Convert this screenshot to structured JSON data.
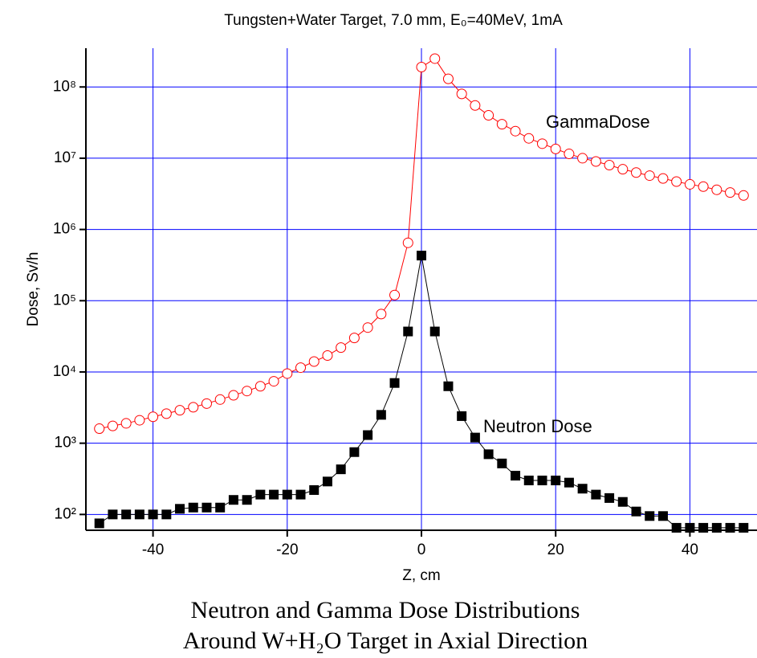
{
  "chart_data": {
    "type": "line",
    "title": "Tungsten+Water Target, 7.0 mm, E₀=40MeV, 1mA",
    "caption": [
      "Neutron and Gamma  Dose Distributions",
      "Around W+H₂O Target in Axial Direction"
    ],
    "x_label": "Z, cm",
    "y_label": "Dose, Sv/h",
    "x": [
      -48,
      -46,
      -44,
      -42,
      -40,
      -38,
      -36,
      -34,
      -32,
      -30,
      -28,
      -26,
      -24,
      -22,
      -20,
      -18,
      -16,
      -14,
      -12,
      -10,
      -8,
      -6,
      -4,
      -2,
      0,
      2,
      4,
      6,
      8,
      10,
      12,
      14,
      16,
      18,
      20,
      22,
      24,
      26,
      28,
      30,
      32,
      34,
      36,
      38,
      40,
      42,
      44,
      46,
      48
    ],
    "series": [
      {
        "name": "GammaDose",
        "color": "#ff0000",
        "marker": "circle",
        "values": [
          1600,
          1750,
          1900,
          2100,
          2350,
          2600,
          2900,
          3200,
          3600,
          4100,
          4700,
          5400,
          6300,
          7400,
          9500,
          11500,
          14000,
          17000,
          22000,
          30000,
          42000,
          65000,
          120000,
          650000,
          190000000,
          250000000,
          130000000,
          80000000,
          55000000,
          40000000,
          30000000,
          24000000,
          19000000,
          16000000,
          13500000,
          11500000,
          10000000,
          9000000,
          8000000,
          7000000,
          6300000,
          5700000,
          5200000,
          4700000,
          4300000,
          4000000,
          3600000,
          3300000,
          3000000
        ]
      },
      {
        "name": "Neutron Dose",
        "color": "#000000",
        "marker": "square",
        "values": [
          75,
          100,
          100,
          100,
          100,
          100,
          120,
          125,
          125,
          125,
          160,
          160,
          190,
          190,
          190,
          190,
          220,
          290,
          430,
          750,
          1300,
          2500,
          7000,
          37000,
          430000,
          37000,
          6300,
          2400,
          1200,
          700,
          520,
          350,
          300,
          300,
          300,
          280,
          230,
          190,
          170,
          150,
          110,
          95,
          95,
          65,
          65,
          65,
          65,
          65,
          65
        ]
      }
    ],
    "log_y": true,
    "grid": true,
    "xlim": [
      -50,
      50
    ],
    "xticks": [
      -40,
      -20,
      0,
      20,
      40
    ],
    "ylim": [
      60,
      350000000
    ],
    "yticks": [
      {
        "value": 100,
        "label": "10²"
      },
      {
        "value": 1000,
        "label": "10³"
      },
      {
        "value": 10000,
        "label": "10⁴"
      },
      {
        "value": 100000,
        "label": "10⁵"
      },
      {
        "value": 1000000,
        "label": "10⁶"
      },
      {
        "value": 10000000,
        "label": "10⁷"
      },
      {
        "value": 100000000,
        "label": "10⁸"
      }
    ]
  }
}
